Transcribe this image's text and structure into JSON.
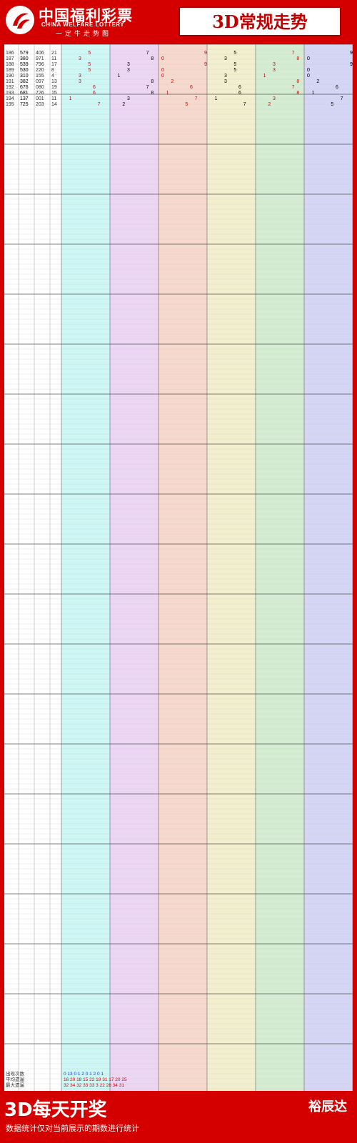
{
  "header": {
    "brand_cn": "中国福利彩票",
    "brand_en": "CHINA WELFARE LOTTERY",
    "brand_sub": "一定牛走势图",
    "title": "3D常规走势"
  },
  "footer": {
    "headline": "3D每天开奖",
    "note": "数据统计仅对当前展示的期数进行统计",
    "brand": "裕辰达"
  },
  "colors": {
    "brand_red": "#d40000",
    "zone_cyan": "#cdf7f5",
    "zone_purple": "#ecd6f3",
    "zone_salmon": "#f7d8cc",
    "zone_yellow": "#f2efcf",
    "zone_green": "#d4ecd2",
    "zone_blue": "#d5d5f5",
    "hit_red": "#e00000",
    "hit_blue": "#2040e0"
  },
  "chart_data": {
    "type": "table",
    "rows_visible": 10,
    "rows": [
      {
        "issue": "186",
        "draw": "579",
        "test": "406",
        "sum": "21"
      },
      {
        "issue": "187",
        "draw": "380",
        "test": "971",
        "sum": "11"
      },
      {
        "issue": "188",
        "draw": "539",
        "test": "796",
        "sum": "17"
      },
      {
        "issue": "189",
        "draw": "530",
        "test": "220",
        "sum": "8"
      },
      {
        "issue": "190",
        "draw": "310",
        "test": "155",
        "sum": "4"
      },
      {
        "issue": "191",
        "draw": "382",
        "test": "097",
        "sum": "13"
      },
      {
        "issue": "192",
        "draw": "676",
        "test": "080",
        "sum": "19"
      },
      {
        "issue": "193",
        "draw": "681",
        "test": "726",
        "sum": "15"
      },
      {
        "issue": "194",
        "draw": "137",
        "test": "001",
        "sum": "11"
      },
      {
        "issue": "195",
        "draw": "725",
        "test": "203",
        "sum": "14"
      }
    ],
    "summary_rows": [
      {
        "label": "出现次数",
        "values": "0 13 0 1 2 0 1 2 0 1"
      },
      {
        "label": "平均遗漏",
        "values": "16 20 18 15 22 19 31 17 20 25"
      },
      {
        "label": "最大遗漏",
        "values": "32 34 32 33 33 3 22 28 34 31"
      }
    ]
  }
}
